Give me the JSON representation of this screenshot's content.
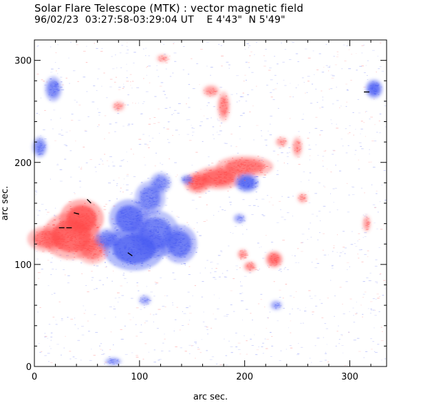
{
  "title": "Solar Flare Telescope (MTK) : vector magnetic field",
  "subtitle": "96/02/23  03:27:58-03:29:04 UT    E 4'43\"  N 5'49\"",
  "colors": {
    "positive": "#ff4a4a",
    "negative": "#4a5cf2",
    "background": "#ffffff",
    "axis": "#000000"
  },
  "chart_data": {
    "type": "heatmap",
    "xlabel": "arc sec.",
    "ylabel": "arc sec.",
    "xlim": [
      0,
      335
    ],
    "ylim": [
      0,
      320
    ],
    "x_ticks": [
      0,
      100,
      200,
      300
    ],
    "y_ticks": [
      0,
      100,
      200,
      300
    ],
    "minor_tick_step": 20,
    "legend": "none",
    "polarity_regions": [
      {
        "polarity": "positive",
        "x": 45,
        "y": 145,
        "rx": 20,
        "ry": 18,
        "strength": 1.0
      },
      {
        "polarity": "positive",
        "x": 35,
        "y": 128,
        "rx": 26,
        "ry": 22,
        "strength": 0.9
      },
      {
        "polarity": "positive",
        "x": 12,
        "y": 125,
        "rx": 18,
        "ry": 12,
        "strength": 0.7
      },
      {
        "polarity": "positive",
        "x": 55,
        "y": 115,
        "rx": 15,
        "ry": 14,
        "strength": 0.6
      },
      {
        "polarity": "positive",
        "x": 175,
        "y": 185,
        "rx": 22,
        "ry": 11,
        "strength": 0.9
      },
      {
        "polarity": "positive",
        "x": 155,
        "y": 180,
        "rx": 12,
        "ry": 10,
        "strength": 0.8
      },
      {
        "polarity": "positive",
        "x": 200,
        "y": 196,
        "rx": 26,
        "ry": 10,
        "strength": 0.75
      },
      {
        "polarity": "positive",
        "x": 228,
        "y": 105,
        "rx": 8,
        "ry": 8,
        "strength": 0.8
      },
      {
        "polarity": "positive",
        "x": 205,
        "y": 98,
        "rx": 6,
        "ry": 5,
        "strength": 0.45
      },
      {
        "polarity": "positive",
        "x": 198,
        "y": 110,
        "rx": 5,
        "ry": 5,
        "strength": 0.4
      },
      {
        "polarity": "positive",
        "x": 180,
        "y": 255,
        "rx": 6,
        "ry": 14,
        "strength": 0.5
      },
      {
        "polarity": "positive",
        "x": 168,
        "y": 270,
        "rx": 8,
        "ry": 6,
        "strength": 0.35
      },
      {
        "polarity": "positive",
        "x": 250,
        "y": 215,
        "rx": 5,
        "ry": 10,
        "strength": 0.35
      },
      {
        "polarity": "positive",
        "x": 235,
        "y": 220,
        "rx": 6,
        "ry": 5,
        "strength": 0.25
      },
      {
        "polarity": "positive",
        "x": 316,
        "y": 140,
        "rx": 4,
        "ry": 8,
        "strength": 0.3
      },
      {
        "polarity": "positive",
        "x": 80,
        "y": 255,
        "rx": 6,
        "ry": 5,
        "strength": 0.25
      },
      {
        "polarity": "positive",
        "x": 255,
        "y": 165,
        "rx": 5,
        "ry": 5,
        "strength": 0.3
      },
      {
        "polarity": "positive",
        "x": 122,
        "y": 302,
        "rx": 6,
        "ry": 4,
        "strength": 0.2
      },
      {
        "polarity": "negative",
        "x": 95,
        "y": 115,
        "rx": 28,
        "ry": 20,
        "strength": 1.0
      },
      {
        "polarity": "negative",
        "x": 90,
        "y": 145,
        "rx": 18,
        "ry": 18,
        "strength": 0.95
      },
      {
        "polarity": "negative",
        "x": 115,
        "y": 130,
        "rx": 22,
        "ry": 22,
        "strength": 0.8
      },
      {
        "polarity": "negative",
        "x": 138,
        "y": 120,
        "rx": 16,
        "ry": 18,
        "strength": 0.85
      },
      {
        "polarity": "negative",
        "x": 70,
        "y": 125,
        "rx": 12,
        "ry": 10,
        "strength": 0.7
      },
      {
        "polarity": "negative",
        "x": 110,
        "y": 165,
        "rx": 14,
        "ry": 16,
        "strength": 0.7
      },
      {
        "polarity": "negative",
        "x": 120,
        "y": 180,
        "rx": 10,
        "ry": 10,
        "strength": 0.55
      },
      {
        "polarity": "negative",
        "x": 202,
        "y": 180,
        "rx": 11,
        "ry": 9,
        "strength": 1.0
      },
      {
        "polarity": "negative",
        "x": 323,
        "y": 272,
        "rx": 8,
        "ry": 9,
        "strength": 0.95
      },
      {
        "polarity": "negative",
        "x": 18,
        "y": 272,
        "rx": 8,
        "ry": 12,
        "strength": 0.65
      },
      {
        "polarity": "negative",
        "x": 5,
        "y": 215,
        "rx": 7,
        "ry": 10,
        "strength": 0.6
      },
      {
        "polarity": "negative",
        "x": 145,
        "y": 183,
        "rx": 6,
        "ry": 5,
        "strength": 0.45
      },
      {
        "polarity": "negative",
        "x": 75,
        "y": 5,
        "rx": 8,
        "ry": 4,
        "strength": 0.4
      },
      {
        "polarity": "negative",
        "x": 105,
        "y": 65,
        "rx": 6,
        "ry": 5,
        "strength": 0.3
      },
      {
        "polarity": "negative",
        "x": 195,
        "y": 145,
        "rx": 6,
        "ry": 5,
        "strength": 0.3
      },
      {
        "polarity": "negative",
        "x": 230,
        "y": 60,
        "rx": 6,
        "ry": 5,
        "strength": 0.25
      }
    ],
    "transverse_field_arrows": [
      {
        "x": 52,
        "y": 162,
        "angle_deg": -45
      },
      {
        "x": 40,
        "y": 150,
        "angle_deg": -15
      },
      {
        "x": 26,
        "y": 136,
        "angle_deg": 0
      },
      {
        "x": 33,
        "y": 136,
        "angle_deg": 0
      },
      {
        "x": 91,
        "y": 110,
        "angle_deg": -35
      },
      {
        "x": 316,
        "y": 269,
        "angle_deg": 0
      }
    ]
  }
}
